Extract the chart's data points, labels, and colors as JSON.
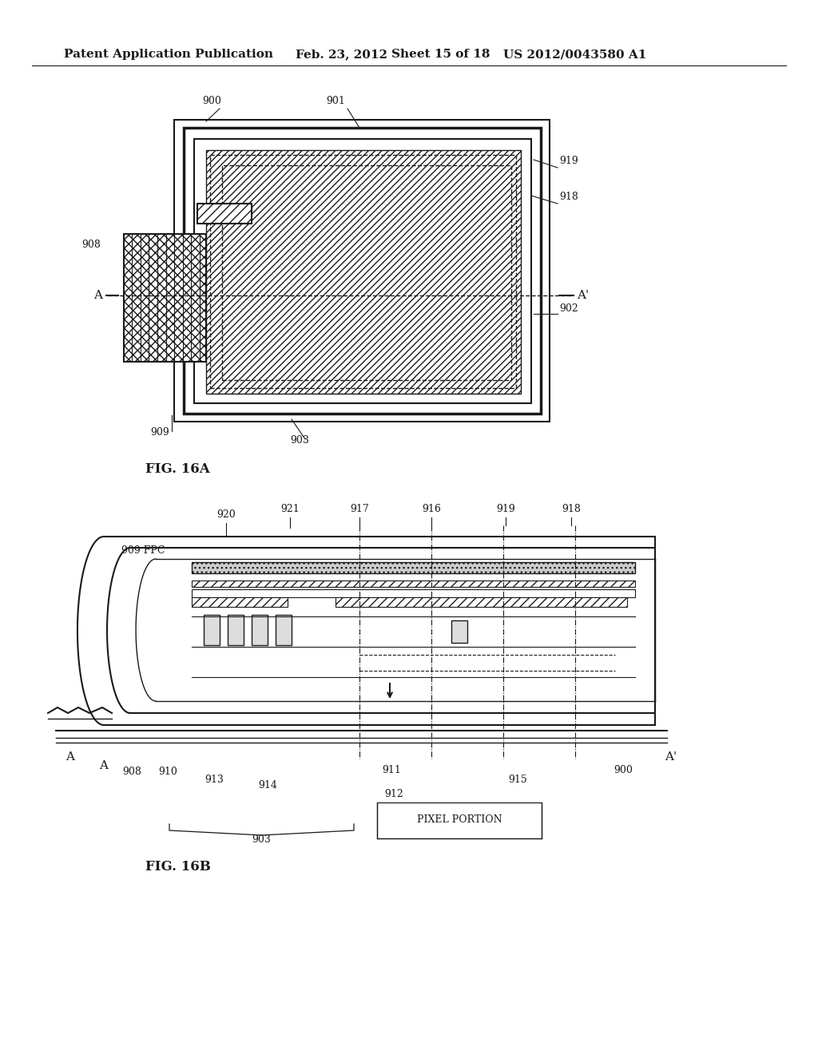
{
  "bg_color": "#ffffff",
  "header_text": "Patent Application Publication",
  "header_date": "Feb. 23, 2012",
  "header_sheet": "Sheet 15 of 18",
  "header_patent": "US 2012/0043580 A1",
  "fig_label_a": "FIG. 16A",
  "fig_label_b": "FIG. 16B",
  "color_main": "#1a1a1a"
}
